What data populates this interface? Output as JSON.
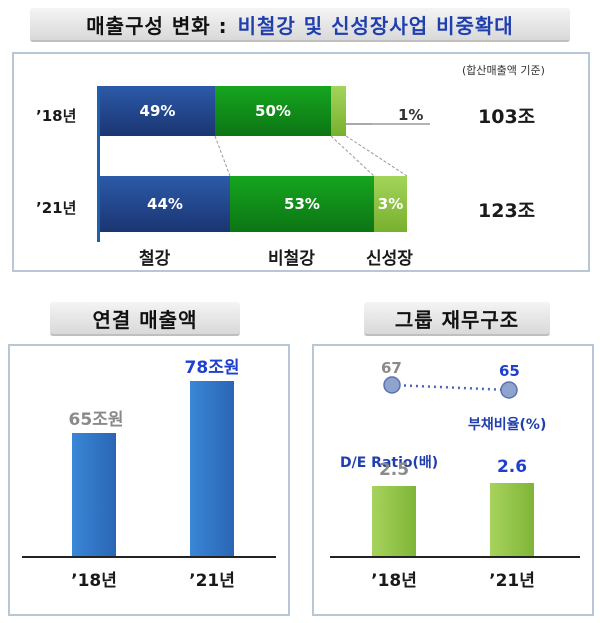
{
  "top": {
    "title_black": "매출구성 변화 :",
    "title_blue": "비철강 및 신성장사업 비중확대",
    "note": "(합산매출액 기준)",
    "colors": {
      "steel": "#1f3f86",
      "nonsteel": "#0f8a1a",
      "growth": "#8dc63f",
      "axis": "#1f5fb0"
    },
    "pct_1pct": "1%",
    "categories_bottom": [
      "철강",
      "비철강",
      "신성장"
    ]
  },
  "left": {
    "title": "연결 매출액",
    "color": "#2e74c7"
  },
  "right": {
    "title": "그룹 재무구조",
    "debt_label": "부채비율(%)",
    "de_label": "D/E Ratio(배)",
    "dot_color": "#7b93c6",
    "bar_color": "#8dc63f"
  },
  "chart_data": [
    {
      "type": "bar",
      "stacked": true,
      "orientation": "horizontal",
      "title": "매출구성 변화 : 비철강 및 신성장사업 비중확대",
      "categories": [
        "’18년",
        "’21년"
      ],
      "series": [
        {
          "name": "철강",
          "values": [
            49,
            44
          ],
          "labels": [
            "49%",
            "44%"
          ]
        },
        {
          "name": "비철강",
          "values": [
            50,
            53
          ],
          "labels": [
            "50%",
            "53%"
          ]
        },
        {
          "name": "신성장",
          "values": [
            1,
            3
          ],
          "labels": [
            "1%",
            "3%"
          ]
        }
      ],
      "totals": [
        "103조",
        "123조"
      ]
    },
    {
      "type": "bar",
      "title": "연결 매출액",
      "categories": [
        "’18년",
        "’21년"
      ],
      "values": [
        65,
        78
      ],
      "labels": [
        "65조원",
        "78조원"
      ],
      "ylim": [
        0,
        85
      ]
    },
    {
      "type": "line",
      "title": "그룹 재무구조",
      "series_label": "부채비율(%)",
      "x": [
        "’18년",
        "’21년"
      ],
      "values": [
        67,
        65
      ],
      "labels": [
        "67",
        "65"
      ]
    },
    {
      "type": "bar",
      "series_label": "D/E Ratio(배)",
      "categories": [
        "’18년",
        "’21년"
      ],
      "values": [
        2.5,
        2.6
      ],
      "labels": [
        "2.5",
        "2.6"
      ]
    }
  ]
}
